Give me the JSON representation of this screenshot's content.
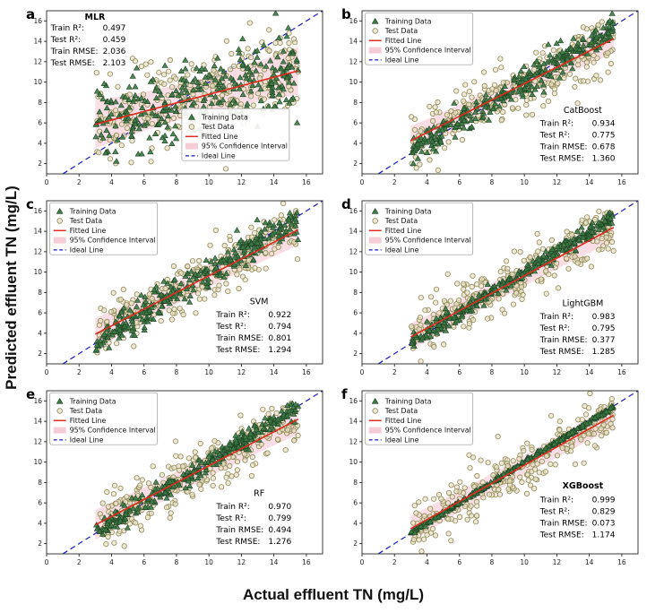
{
  "figure": {
    "x_axis_label": "Actual effluent TN (mg/L)",
    "y_axis_label": "Predicted effluent TN (mg/L)"
  },
  "axes": {
    "x_range": [
      0,
      17
    ],
    "y_range": [
      1,
      17
    ],
    "x_ticks": [
      0,
      2,
      4,
      6,
      8,
      10,
      12,
      14,
      16
    ],
    "y_ticks": [
      2,
      4,
      6,
      8,
      10,
      12,
      14,
      16
    ]
  },
  "colors": {
    "train_fill": "#3c7a45",
    "train_edge": "#1d4223",
    "test_fill": "#eadfc9",
    "test_edge": "#8f8a55",
    "fit_line": "#e02b20",
    "ci_band": "#f5c3cf",
    "ideal_line": "#1a1ac8",
    "frame": "#262626",
    "tick_text": "#222222",
    "legend_border": "#999999"
  },
  "legend_items": [
    {
      "type": "train",
      "label": "Training Data"
    },
    {
      "type": "test",
      "label": "Test Data"
    },
    {
      "type": "fit",
      "label": "Fitted Line"
    },
    {
      "type": "ci",
      "label": "95% Confidence Interval"
    },
    {
      "type": "ideal",
      "label": "Ideal Line"
    }
  ],
  "chart_data": [
    {
      "type": "scatter",
      "letter": "a",
      "model": "MLR",
      "model_bold": true,
      "stats": [
        [
          "Train R²:",
          "0.497"
        ],
        [
          "Test R²:",
          "0.459"
        ],
        [
          "Train RMSE:",
          "2.036"
        ],
        [
          "Test RMSE:",
          "2.103"
        ]
      ],
      "fit": {
        "slope": 0.42,
        "intercept": 4.6,
        "x0": 3.0,
        "x1": 15.5
      },
      "train_line": {
        "slope": 0.42,
        "intercept": 4.6
      },
      "train_sd": 2.0,
      "test_sd": 2.05,
      "band_halfwidth": 1.75,
      "seed": 11,
      "n_train": 300,
      "n_test": 300,
      "legend_pos": {
        "fx": 0.49,
        "fy": 0.6
      },
      "model_pos": {
        "fx": 0.175,
        "fy": 0.055
      },
      "stats_pos": {
        "fx": 0.015,
        "fy": 0.12
      }
    },
    {
      "type": "scatter",
      "letter": "b",
      "model": "CatBoost",
      "model_bold": false,
      "stats": [
        [
          "Train R²:",
          "0.934"
        ],
        [
          "Test R²:",
          "0.775"
        ],
        [
          "Train RMSE:",
          "0.678"
        ],
        [
          "Test RMSE:",
          "1.360"
        ]
      ],
      "fit": {
        "slope": 0.8,
        "intercept": 1.85,
        "x0": 3.0,
        "x1": 15.5
      },
      "train_line": {
        "slope": 0.97,
        "intercept": 0.3
      },
      "train_sd": 0.65,
      "test_sd": 1.36,
      "band_halfwidth": 1.05,
      "seed": 22,
      "n_train": 300,
      "n_test": 300,
      "legend_pos": {
        "fx": 0.012,
        "fy": 0.012
      },
      "model_pos": {
        "fx": 0.8,
        "fy": 0.625
      },
      "stats_pos": {
        "fx": 0.645,
        "fy": 0.705
      }
    },
    {
      "type": "scatter",
      "letter": "c",
      "model": "SVM",
      "model_bold": false,
      "stats": [
        [
          "Train R²:",
          "0.922"
        ],
        [
          "Test R²:",
          "0.794"
        ],
        [
          "Train RMSE:",
          "0.801"
        ],
        [
          "Test RMSE:",
          "1.294"
        ]
      ],
      "fit": {
        "slope": 0.82,
        "intercept": 1.45,
        "x0": 3.0,
        "x1": 15.5
      },
      "train_line": {
        "slope": 0.96,
        "intercept": 0.35
      },
      "train_sd": 0.78,
      "test_sd": 1.29,
      "band_halfwidth": 1.15,
      "seed": 33,
      "n_train": 300,
      "n_test": 300,
      "legend_pos": {
        "fx": 0.012,
        "fy": 0.012
      },
      "model_pos": {
        "fx": 0.77,
        "fy": 0.635
      },
      "stats_pos": {
        "fx": 0.615,
        "fy": 0.715
      }
    },
    {
      "type": "scatter",
      "letter": "d",
      "model": "LightGBM",
      "model_bold": false,
      "stats": [
        [
          "Train R²:",
          "0.983"
        ],
        [
          "Test R²:",
          "0.795"
        ],
        [
          "Train RMSE:",
          "0.377"
        ],
        [
          "Test RMSE:",
          "1.285"
        ]
      ],
      "fit": {
        "slope": 0.86,
        "intercept": 1.05,
        "x0": 3.0,
        "x1": 15.5
      },
      "train_line": {
        "slope": 0.98,
        "intercept": 0.2
      },
      "train_sd": 0.38,
      "test_sd": 1.29,
      "band_halfwidth": 1.0,
      "seed": 44,
      "n_train": 300,
      "n_test": 300,
      "legend_pos": {
        "fx": 0.012,
        "fy": 0.012
      },
      "model_pos": {
        "fx": 0.8,
        "fy": 0.645
      },
      "stats_pos": {
        "fx": 0.645,
        "fy": 0.725
      }
    },
    {
      "type": "scatter",
      "letter": "e",
      "model": "RF",
      "model_bold": false,
      "stats": [
        [
          "Train R²:",
          "0.970"
        ],
        [
          "Test R²:",
          "0.799"
        ],
        [
          "Train RMSE:",
          "0.494"
        ],
        [
          "Test RMSE:",
          "1.276"
        ]
      ],
      "fit": {
        "slope": 0.83,
        "intercept": 1.35,
        "x0": 3.0,
        "x1": 15.5
      },
      "train_line": {
        "slope": 0.98,
        "intercept": 0.2
      },
      "train_sd": 0.48,
      "test_sd": 1.28,
      "band_halfwidth": 1.1,
      "seed": 55,
      "n_train": 300,
      "n_test": 300,
      "legend_pos": {
        "fx": 0.012,
        "fy": 0.012
      },
      "model_pos": {
        "fx": 0.77,
        "fy": 0.645
      },
      "stats_pos": {
        "fx": 0.615,
        "fy": 0.725
      }
    },
    {
      "type": "scatter",
      "letter": "f",
      "model": "XGBoost",
      "model_bold": true,
      "stats": [
        [
          "Train R²:",
          "0.999"
        ],
        [
          "Test R²:",
          "0.829"
        ],
        [
          "Train RMSE:",
          "0.073"
        ],
        [
          "Test RMSE:",
          "1.174"
        ]
      ],
      "fit": {
        "slope": 0.89,
        "intercept": 0.8,
        "x0": 3.0,
        "x1": 15.5
      },
      "train_line": {
        "slope": 0.995,
        "intercept": 0.05
      },
      "train_sd": 0.09,
      "test_sd": 1.17,
      "band_halfwidth": 0.95,
      "seed": 66,
      "n_train": 300,
      "n_test": 300,
      "legend_pos": {
        "fx": 0.012,
        "fy": 0.012
      },
      "model_pos": {
        "fx": 0.8,
        "fy": 0.6
      },
      "stats_pos": {
        "fx": 0.645,
        "fy": 0.685
      }
    }
  ]
}
